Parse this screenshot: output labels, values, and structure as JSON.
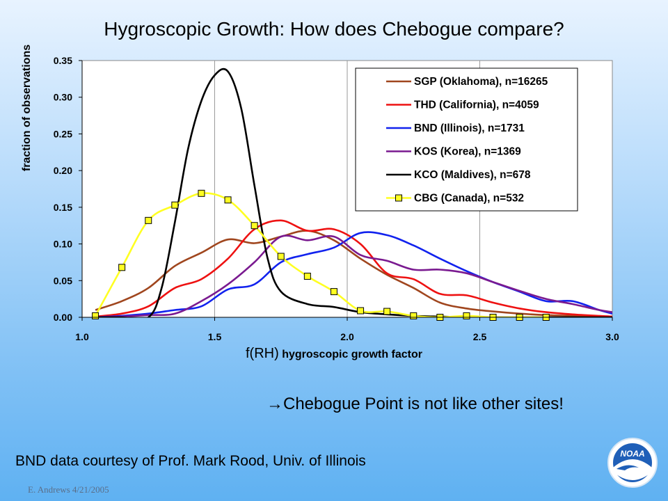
{
  "slide": {
    "title": "Hygroscopic Growth: How does Chebogue compare?",
    "conclusion": "→Chebogue Point is not like other sites!",
    "credit": "BND data courtesy of Prof. Mark Rood, Univ. of Illinois",
    "footer": "E. Andrews  4/21/2005",
    "logo_text": "NOAA"
  },
  "chart_data": {
    "type": "line",
    "title": "",
    "xlabel_symbol": "f(RH)",
    "xlabel": "hygroscopic growth factor",
    "ylabel": "fraction of observations",
    "xlim": [
      1.0,
      3.0
    ],
    "ylim": [
      0.0,
      0.35
    ],
    "x_ticks": [
      1.0,
      1.5,
      2.0,
      2.5,
      3.0
    ],
    "x_tick_labels": [
      "1.0",
      "1.5",
      "2.0",
      "2.5",
      "3.0"
    ],
    "y_ticks": [
      0.0,
      0.05,
      0.1,
      0.15,
      0.2,
      0.25,
      0.3,
      0.35
    ],
    "y_tick_labels": [
      "0.00",
      "0.05",
      "0.10",
      "0.15",
      "0.20",
      "0.25",
      "0.30",
      "0.35"
    ],
    "grid": "vertical",
    "legend_position": "top-right",
    "series": [
      {
        "name": "SGP (Oklahoma), n=16265",
        "color": "#a0461e",
        "x": [
          1.05,
          1.15,
          1.25,
          1.35,
          1.45,
          1.55,
          1.65,
          1.75,
          1.85,
          1.95,
          2.05,
          2.15,
          2.25,
          2.35,
          2.45,
          2.55,
          2.65,
          2.75,
          2.85,
          2.95,
          3.0
        ],
        "y": [
          0.01,
          0.022,
          0.04,
          0.07,
          0.088,
          0.106,
          0.101,
          0.11,
          0.118,
          0.105,
          0.08,
          0.058,
          0.04,
          0.02,
          0.012,
          0.008,
          0.005,
          0.003,
          0.002,
          0.001,
          0.001
        ]
      },
      {
        "name": "THD (California), n=4059",
        "color": "#ee1111",
        "x": [
          1.05,
          1.15,
          1.25,
          1.35,
          1.45,
          1.55,
          1.65,
          1.75,
          1.85,
          1.95,
          2.05,
          2.15,
          2.25,
          2.35,
          2.45,
          2.55,
          2.65,
          2.75,
          2.85,
          2.95,
          3.0
        ],
        "y": [
          0.001,
          0.005,
          0.015,
          0.04,
          0.052,
          0.08,
          0.12,
          0.132,
          0.118,
          0.12,
          0.1,
          0.06,
          0.052,
          0.032,
          0.03,
          0.02,
          0.012,
          0.007,
          0.004,
          0.002,
          0.001
        ]
      },
      {
        "name": "BND (Illinois), n=1731",
        "color": "#1122ee",
        "x": [
          1.05,
          1.15,
          1.25,
          1.35,
          1.45,
          1.55,
          1.65,
          1.75,
          1.85,
          1.95,
          2.05,
          2.15,
          2.25,
          2.35,
          2.45,
          2.55,
          2.65,
          2.75,
          2.85,
          2.95,
          3.0
        ],
        "y": [
          0.0,
          0.002,
          0.005,
          0.01,
          0.015,
          0.038,
          0.045,
          0.075,
          0.086,
          0.095,
          0.115,
          0.112,
          0.098,
          0.08,
          0.063,
          0.048,
          0.035,
          0.022,
          0.022,
          0.01,
          0.005
        ]
      },
      {
        "name": "KOS (Korea), n=1369",
        "color": "#7a1a90",
        "x": [
          1.05,
          1.15,
          1.25,
          1.35,
          1.45,
          1.55,
          1.65,
          1.75,
          1.85,
          1.95,
          2.05,
          2.15,
          2.25,
          2.35,
          2.45,
          2.55,
          2.65,
          2.75,
          2.85,
          2.95,
          3.0
        ],
        "y": [
          0.0,
          0.001,
          0.003,
          0.005,
          0.022,
          0.045,
          0.075,
          0.11,
          0.105,
          0.11,
          0.085,
          0.077,
          0.065,
          0.065,
          0.06,
          0.048,
          0.036,
          0.025,
          0.018,
          0.01,
          0.007
        ]
      },
      {
        "name": "KCO (Maldives), n=678",
        "color": "#000000",
        "x": [
          1.05,
          1.15,
          1.25,
          1.3,
          1.35,
          1.4,
          1.45,
          1.5,
          1.55,
          1.6,
          1.65,
          1.7,
          1.75,
          1.85,
          1.95,
          2.05,
          2.15,
          2.25,
          2.35,
          2.45,
          2.55,
          2.65,
          2.75,
          2.85,
          2.95,
          3.0
        ],
        "y": [
          0.0,
          0.0,
          0.0,
          0.04,
          0.13,
          0.23,
          0.295,
          0.33,
          0.335,
          0.285,
          0.18,
          0.08,
          0.035,
          0.018,
          0.014,
          0.007,
          0.004,
          0.002,
          0.001,
          0.0,
          0.0,
          0.0,
          0.0,
          0.0,
          0.0,
          0.0
        ]
      },
      {
        "name": "CBG (Canada), n=532",
        "color": "#ffff22",
        "markers": true,
        "x": [
          1.05,
          1.15,
          1.25,
          1.35,
          1.45,
          1.55,
          1.65,
          1.75,
          1.85,
          1.95,
          2.05,
          2.15,
          2.25,
          2.35,
          2.45,
          2.55,
          2.65,
          2.75
        ],
        "y": [
          0.002,
          0.068,
          0.132,
          0.153,
          0.169,
          0.16,
          0.125,
          0.083,
          0.056,
          0.035,
          0.009,
          0.008,
          0.002,
          0.0,
          0.002,
          0.0,
          0.0,
          0.0
        ]
      }
    ]
  }
}
